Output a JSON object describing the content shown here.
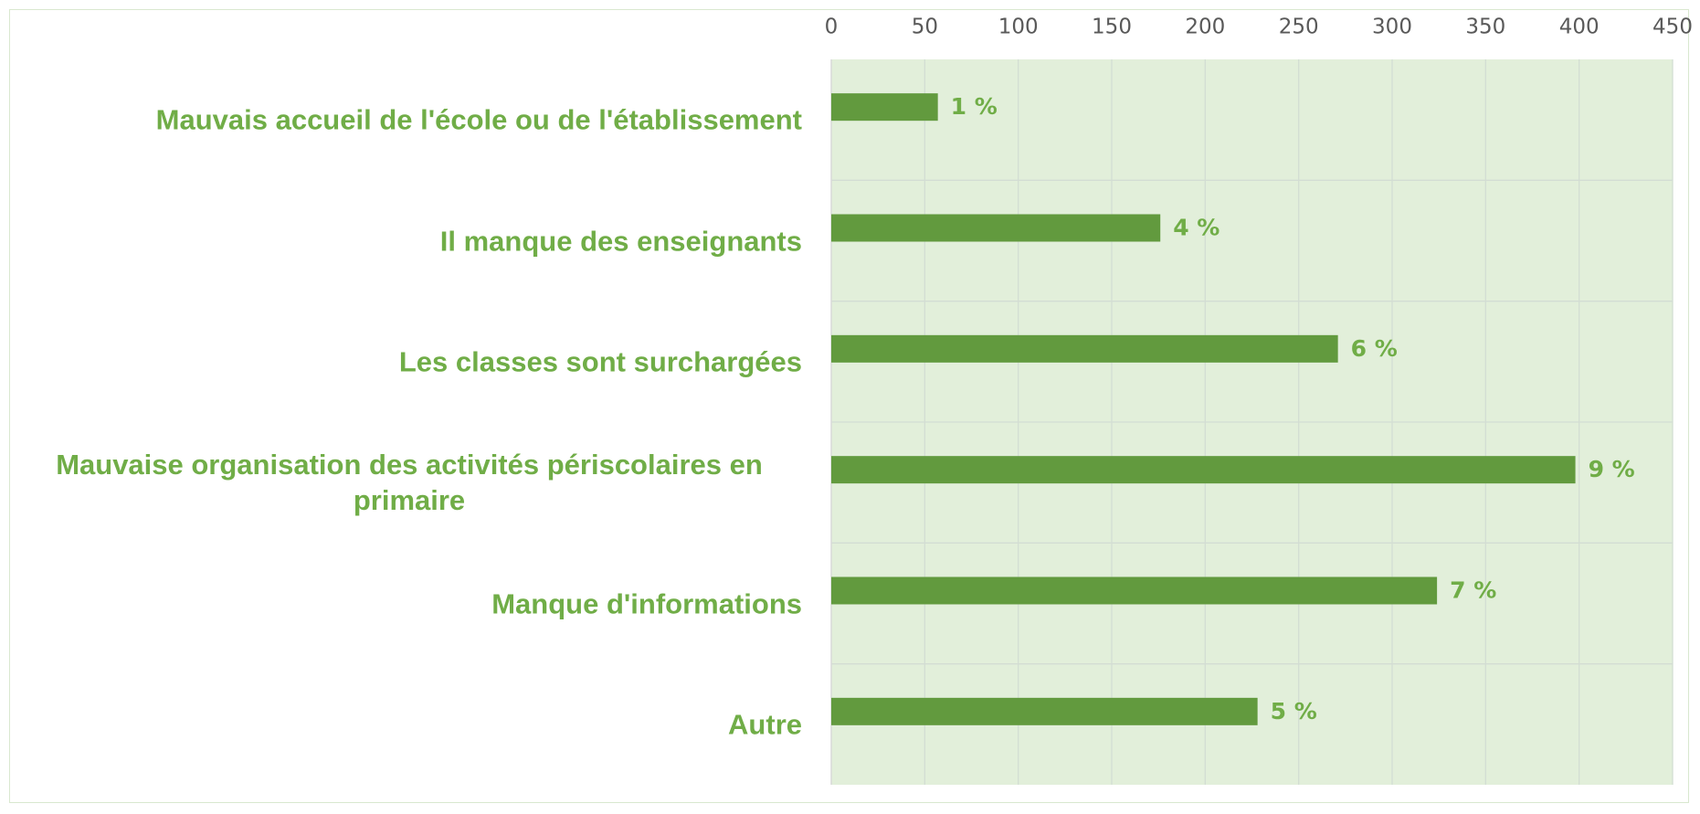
{
  "chart_data": {
    "type": "bar",
    "orientation": "horizontal",
    "categories": [
      "Mauvais accueil de l'école ou de l'établissement",
      "Il manque des enseignants",
      "Les classes sont surchargées",
      "Mauvaise organisation des activités périscolaires en primaire",
      "Manque d'informations",
      "Autre"
    ],
    "values": [
      57,
      176,
      271,
      398,
      324,
      228
    ],
    "percent_labels": [
      "1 %",
      "4 %",
      "6 %",
      "9 %",
      "7 %",
      "5 %"
    ],
    "color": "#629a3e",
    "xlim": [
      0,
      450
    ],
    "xticks": [
      0,
      50,
      100,
      150,
      200,
      250,
      300,
      350,
      400,
      450
    ],
    "grid": true
  }
}
